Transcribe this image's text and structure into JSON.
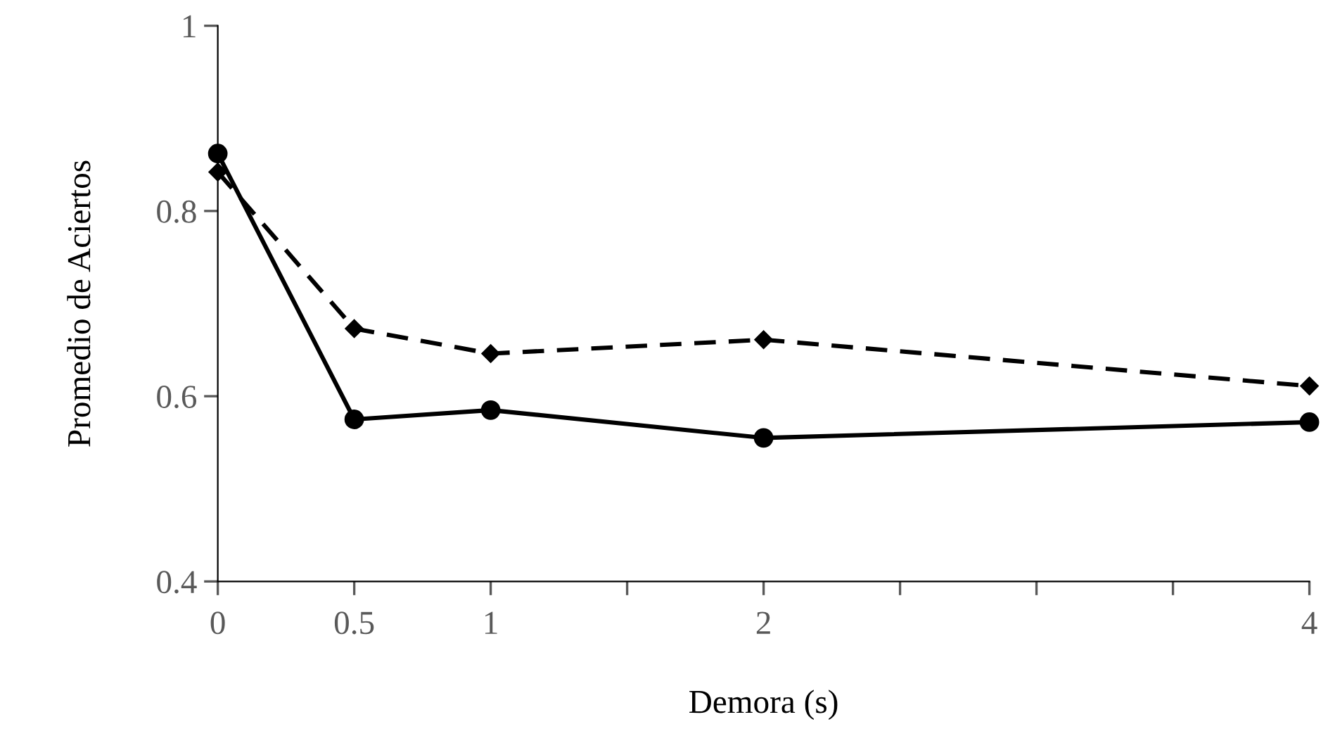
{
  "chart_data": {
    "type": "line",
    "xlabel": "Demora (s)",
    "ylabel": "Promedio de Aciertos",
    "xlim": [
      0,
      4
    ],
    "xticks": [
      0,
      0.5,
      1,
      {
        "value": 1.5,
        "label": null
      },
      2,
      {
        "value": 2.5,
        "label": null
      },
      {
        "value": 3,
        "label": null
      },
      {
        "value": 3.5,
        "label": null
      },
      4
    ],
    "ylim": [
      0.4,
      1
    ],
    "yticks": [
      0.4,
      0.6,
      0.8,
      1
    ],
    "grid": false,
    "legend": false,
    "series": [
      {
        "color": "#000000",
        "x": [
          0,
          0.5,
          1,
          2,
          4
        ],
        "values": [
          0.862,
          0.575,
          0.585,
          0.555,
          0.572
        ],
        "marker": "circle",
        "line_style": "solid"
      },
      {
        "color": "#000000",
        "x": [
          0,
          0.5,
          1,
          2,
          4
        ],
        "values": [
          0.842,
          0.673,
          0.646,
          0.661,
          0.611
        ],
        "marker": "diamond",
        "line_style": "dashed"
      }
    ]
  }
}
